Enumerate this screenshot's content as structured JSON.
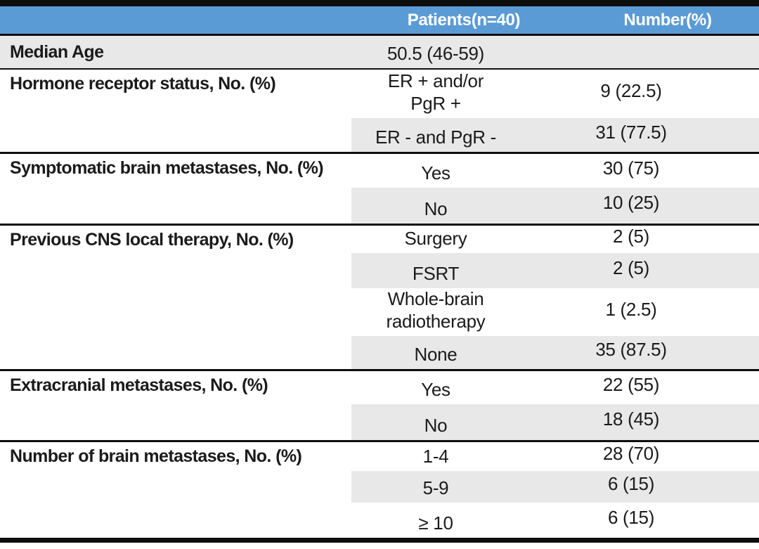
{
  "header": {
    "patients_label": "Patients(n=40)",
    "number_label": "Number(%)"
  },
  "colors": {
    "header_bg": "#5B9BD5",
    "header_text": "#FFFFFF",
    "row_shade": "#E9E8E8",
    "border": "#0E0E0E",
    "text": "#1B1B1B"
  },
  "sections": [
    {
      "label": "Median Age",
      "full_width_shade": true,
      "rows": [
        {
          "value": "50.5 (46-59)",
          "number": "",
          "shaded": false
        }
      ]
    },
    {
      "label": "Hormone receptor status, No. (%)",
      "full_width_shade": false,
      "rows": [
        {
          "value": "ER + and/or\nPgR +",
          "number": "9 (22.5)",
          "shaded": false
        },
        {
          "value": "ER - and PgR -",
          "number": "31 (77.5)",
          "shaded": true
        }
      ]
    },
    {
      "label": "Symptomatic brain metastases, No. (%)",
      "full_width_shade": false,
      "rows": [
        {
          "value": "Yes",
          "number": "30 (75)",
          "shaded": false
        },
        {
          "value": "No",
          "number": "10 (25)",
          "shaded": true
        }
      ]
    },
    {
      "label": "Previous CNS local therapy, No. (%)",
      "full_width_shade": false,
      "rows": [
        {
          "value": "Surgery",
          "number": "2 (5)",
          "shaded": false
        },
        {
          "value": "FSRT",
          "number": "2 (5)",
          "shaded": true
        },
        {
          "value": "Whole-brain\nradiotherapy",
          "number": "1 (2.5)",
          "shaded": false
        },
        {
          "value": "None",
          "number": "35 (87.5)",
          "shaded": true
        }
      ]
    },
    {
      "label": "Extracranial metastases, No. (%)",
      "full_width_shade": false,
      "rows": [
        {
          "value": "Yes",
          "number": "22 (55)",
          "shaded": false
        },
        {
          "value": "No",
          "number": "18 (45)",
          "shaded": true
        }
      ]
    },
    {
      "label": "Number of brain metastases, No. (%)",
      "full_width_shade": false,
      "rows": [
        {
          "value": "1-4",
          "number": "28 (70)",
          "shaded": false
        },
        {
          "value": "5-9",
          "number": "6 (15)",
          "shaded": true
        },
        {
          "value": "≥ 10",
          "number": "6 (15)",
          "shaded": false
        }
      ]
    }
  ]
}
